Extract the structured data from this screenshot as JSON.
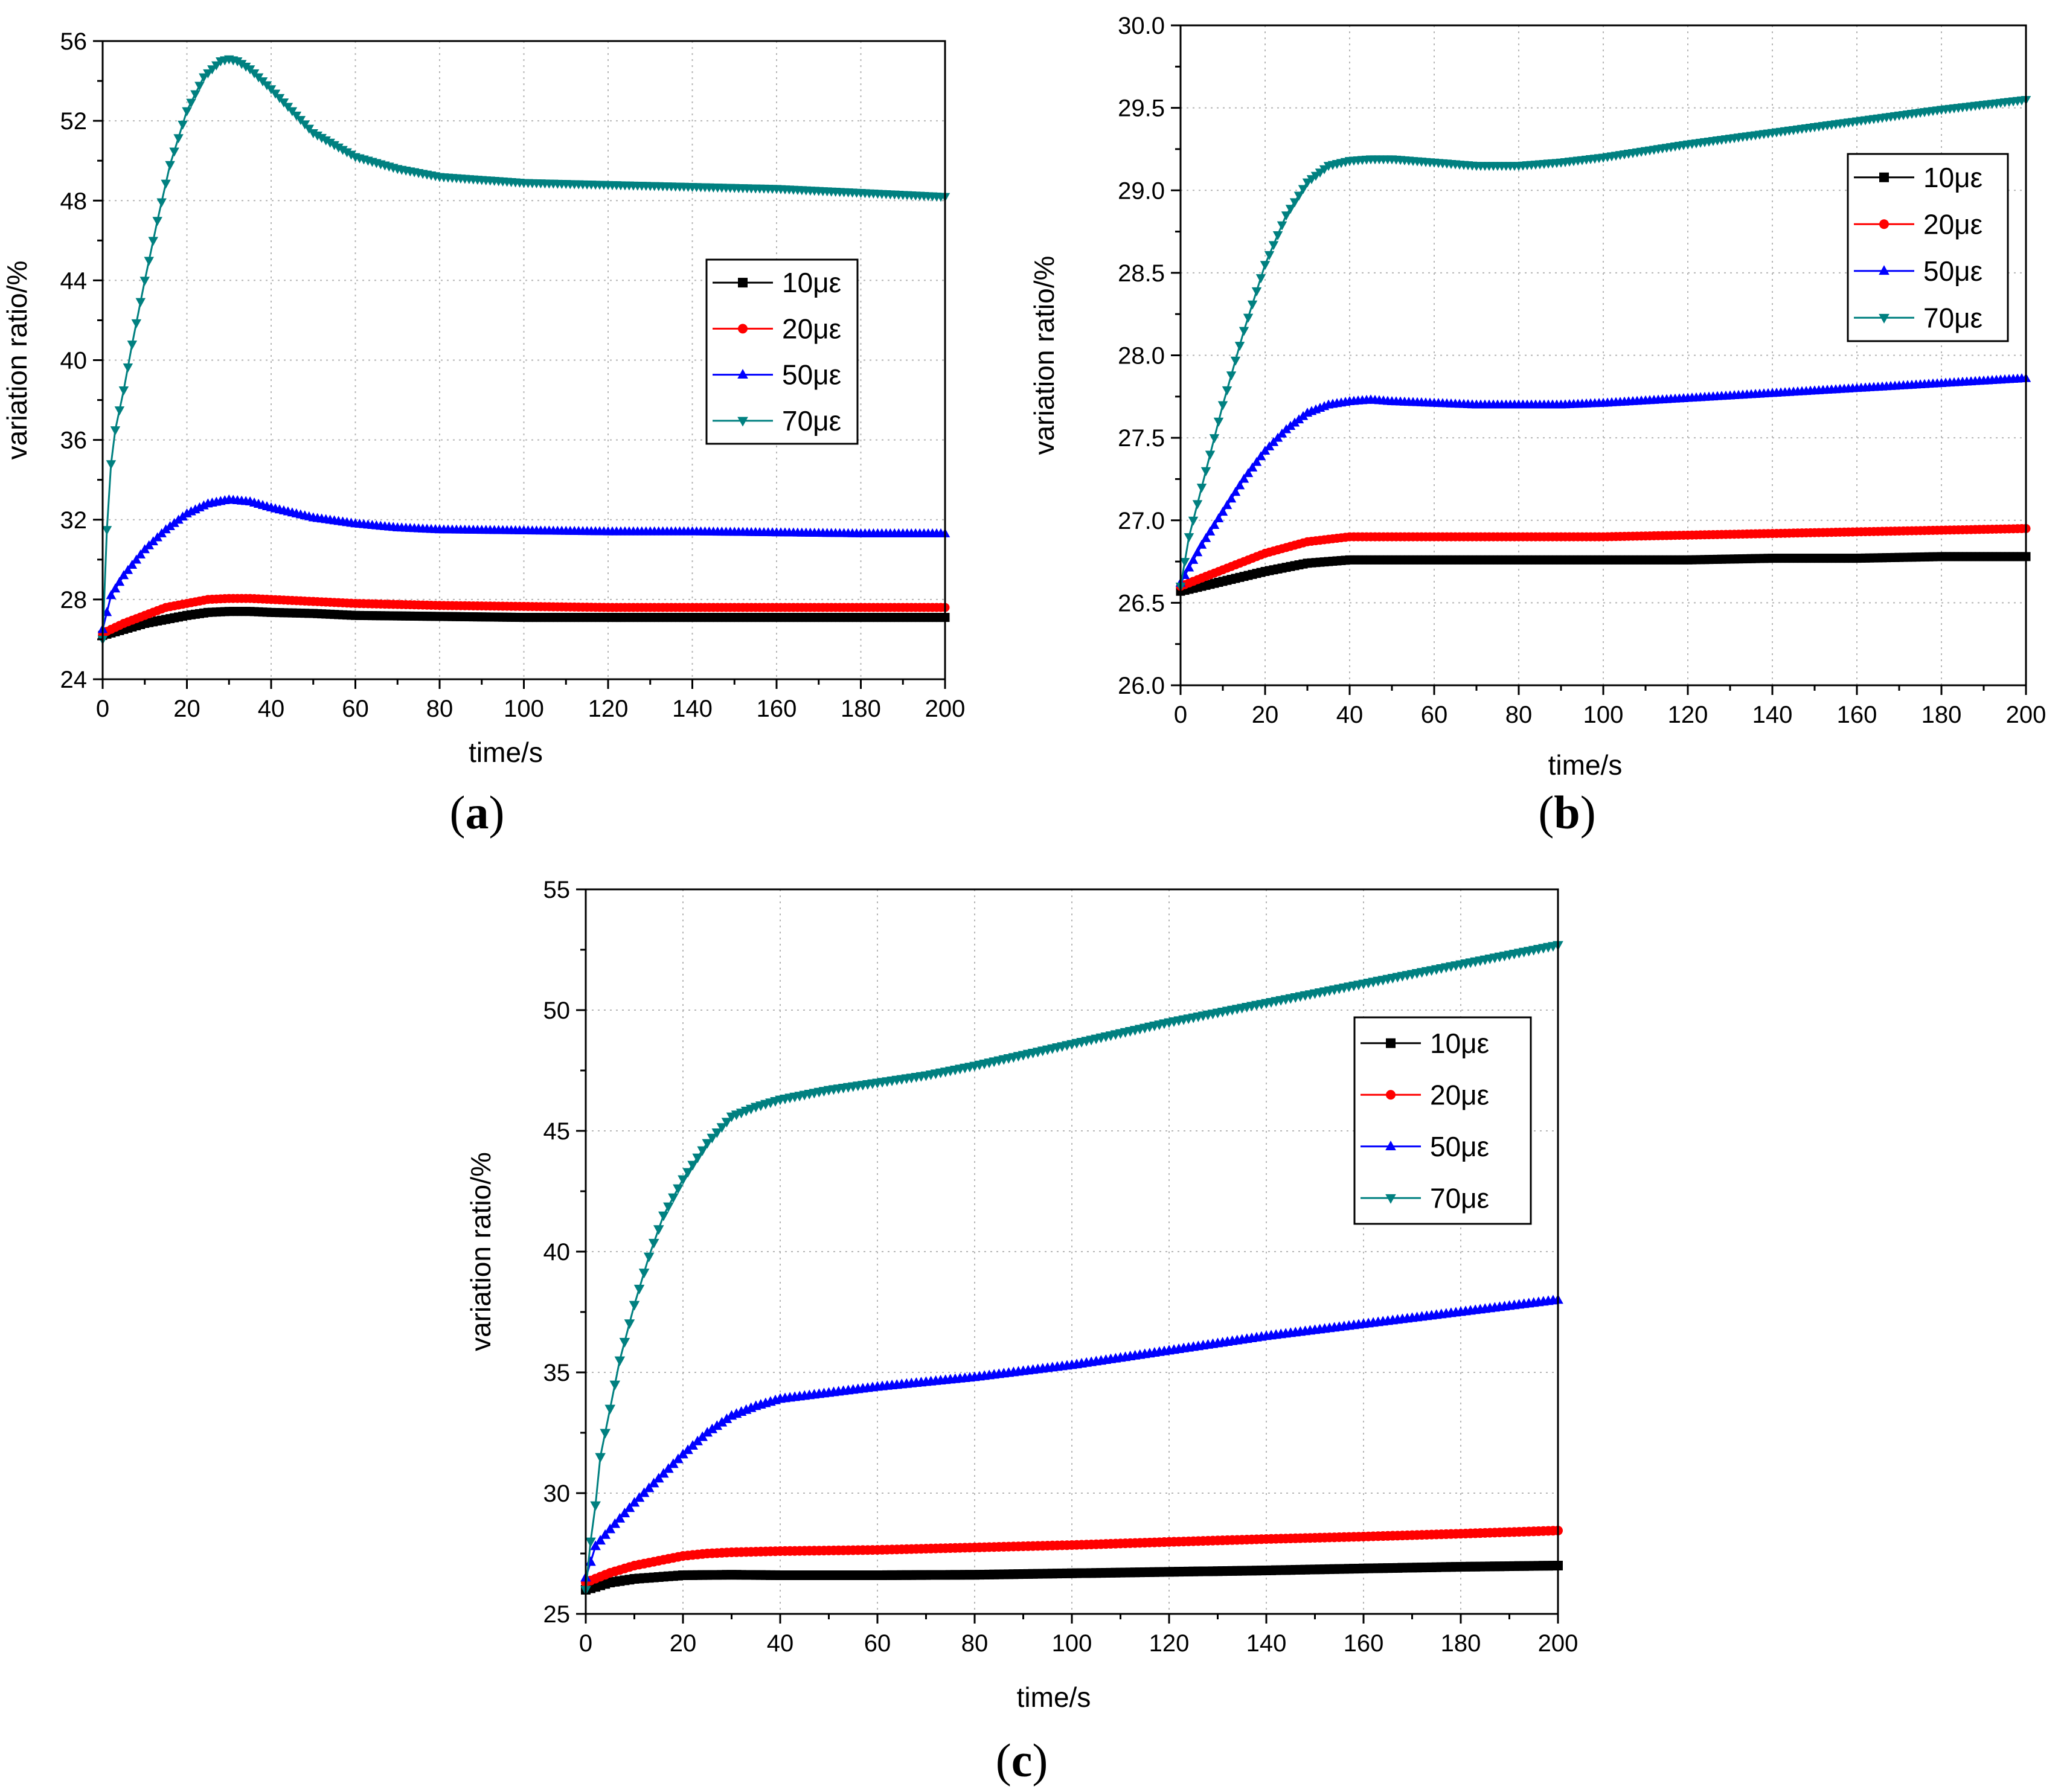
{
  "chart_data": [
    {
      "id": "a",
      "type": "line",
      "panel_label": "a",
      "xlabel": "time/s",
      "ylabel": "variation ratio/%",
      "xlim": [
        0,
        200
      ],
      "ylim": [
        24,
        56
      ],
      "xticks": [
        0,
        20,
        40,
        60,
        80,
        100,
        120,
        140,
        160,
        180,
        200
      ],
      "yticks": [
        24,
        28,
        32,
        36,
        40,
        44,
        48,
        52,
        56
      ],
      "grid": true,
      "legend_position": "right-middle",
      "series": [
        {
          "name": "10με",
          "color": "#000000",
          "marker": "square",
          "x": [
            0,
            5,
            10,
            15,
            20,
            25,
            30,
            35,
            40,
            50,
            60,
            80,
            100,
            120,
            140,
            160,
            180,
            200
          ],
          "y": [
            26.2,
            26.5,
            26.8,
            27.0,
            27.2,
            27.35,
            27.4,
            27.4,
            27.35,
            27.3,
            27.2,
            27.15,
            27.1,
            27.1,
            27.1,
            27.1,
            27.1,
            27.1
          ]
        },
        {
          "name": "20με",
          "color": "#ff0000",
          "marker": "circle",
          "x": [
            0,
            5,
            10,
            15,
            20,
            25,
            30,
            35,
            40,
            50,
            60,
            80,
            100,
            120,
            140,
            160,
            180,
            200
          ],
          "y": [
            26.3,
            26.8,
            27.2,
            27.6,
            27.8,
            28.0,
            28.05,
            28.05,
            28.0,
            27.9,
            27.8,
            27.7,
            27.65,
            27.6,
            27.6,
            27.6,
            27.6,
            27.6
          ]
        },
        {
          "name": "50με",
          "color": "#0000ff",
          "marker": "triangle-up",
          "x": [
            0,
            2,
            5,
            10,
            15,
            20,
            25,
            30,
            35,
            40,
            50,
            60,
            70,
            80,
            100,
            120,
            140,
            160,
            180,
            200
          ],
          "y": [
            26.5,
            28.2,
            29.2,
            30.5,
            31.5,
            32.3,
            32.8,
            33.0,
            32.9,
            32.6,
            32.1,
            31.8,
            31.6,
            31.5,
            31.45,
            31.4,
            31.4,
            31.35,
            31.3,
            31.3
          ]
        },
        {
          "name": "70με",
          "color": "#008080",
          "marker": "triangle-down",
          "x": [
            0,
            1,
            2,
            3,
            5,
            7,
            10,
            13,
            16,
            20,
            24,
            28,
            30,
            32,
            35,
            40,
            45,
            50,
            60,
            70,
            80,
            100,
            120,
            140,
            160,
            180,
            200
          ],
          "y": [
            26.0,
            31.5,
            34.8,
            36.5,
            38.5,
            40.8,
            44.0,
            47.0,
            49.8,
            52.5,
            54.2,
            55.0,
            55.1,
            55.0,
            54.6,
            53.6,
            52.5,
            51.4,
            50.2,
            49.6,
            49.2,
            48.9,
            48.8,
            48.7,
            48.6,
            48.4,
            48.2
          ]
        }
      ]
    },
    {
      "id": "b",
      "type": "line",
      "panel_label": "b",
      "xlabel": "time/s",
      "ylabel": "variation ratio/%",
      "xlim": [
        0,
        200
      ],
      "ylim": [
        26.0,
        30.0
      ],
      "xticks": [
        0,
        20,
        40,
        60,
        80,
        100,
        120,
        140,
        160,
        180,
        200
      ],
      "yticks": [
        26.0,
        26.5,
        27.0,
        27.5,
        28.0,
        28.5,
        29.0,
        29.5,
        30.0
      ],
      "ytick_labels": [
        "26.0",
        "26.5",
        "27.0",
        "27.5",
        "28.0",
        "28.5",
        "29.0",
        "29.5",
        "30.0"
      ],
      "grid": true,
      "legend_position": "top-right",
      "series": [
        {
          "name": "10με",
          "color": "#000000",
          "marker": "square",
          "x": [
            0,
            5,
            10,
            20,
            30,
            40,
            50,
            60,
            80,
            100,
            120,
            140,
            160,
            180,
            200
          ],
          "y": [
            26.57,
            26.6,
            26.63,
            26.69,
            26.74,
            26.76,
            26.76,
            26.76,
            26.76,
            26.76,
            26.76,
            26.77,
            26.77,
            26.78,
            26.78
          ]
        },
        {
          "name": "20με",
          "color": "#ff0000",
          "marker": "circle",
          "x": [
            0,
            5,
            10,
            20,
            30,
            40,
            50,
            60,
            80,
            100,
            120,
            140,
            160,
            180,
            200
          ],
          "y": [
            26.6,
            26.65,
            26.7,
            26.8,
            26.87,
            26.9,
            26.9,
            26.9,
            26.9,
            26.9,
            26.91,
            26.92,
            26.93,
            26.94,
            26.95
          ]
        },
        {
          "name": "50με",
          "color": "#0000ff",
          "marker": "triangle-up",
          "x": [
            0,
            5,
            10,
            15,
            20,
            25,
            30,
            35,
            40,
            45,
            50,
            60,
            70,
            80,
            90,
            100,
            120,
            140,
            160,
            180,
            200
          ],
          "y": [
            26.62,
            26.85,
            27.05,
            27.25,
            27.42,
            27.55,
            27.65,
            27.7,
            27.72,
            27.73,
            27.72,
            27.71,
            27.7,
            27.7,
            27.7,
            27.71,
            27.74,
            27.77,
            27.8,
            27.83,
            27.86
          ]
        },
        {
          "name": "70με",
          "color": "#008080",
          "marker": "triangle-down",
          "x": [
            0,
            2,
            5,
            10,
            15,
            20,
            25,
            30,
            35,
            40,
            45,
            50,
            60,
            70,
            80,
            90,
            100,
            120,
            140,
            160,
            180,
            200
          ],
          "y": [
            26.6,
            26.9,
            27.2,
            27.7,
            28.15,
            28.55,
            28.85,
            29.05,
            29.15,
            29.18,
            29.19,
            29.19,
            29.17,
            29.15,
            29.15,
            29.17,
            29.2,
            29.28,
            29.35,
            29.42,
            29.49,
            29.55
          ]
        }
      ]
    },
    {
      "id": "c",
      "type": "line",
      "panel_label": "c",
      "xlabel": "time/s",
      "ylabel": "variation ratio/%",
      "xlim": [
        0,
        200
      ],
      "ylim": [
        25,
        55
      ],
      "xticks": [
        0,
        20,
        40,
        60,
        80,
        100,
        120,
        140,
        160,
        180,
        200
      ],
      "yticks": [
        25,
        30,
        35,
        40,
        45,
        50,
        55
      ],
      "grid": true,
      "legend_position": "top-right",
      "series": [
        {
          "name": "10με",
          "color": "#000000",
          "marker": "square",
          "x": [
            0,
            5,
            10,
            20,
            30,
            40,
            60,
            80,
            100,
            120,
            140,
            160,
            180,
            200
          ],
          "y": [
            26.0,
            26.3,
            26.45,
            26.6,
            26.62,
            26.6,
            26.6,
            26.62,
            26.68,
            26.74,
            26.8,
            26.88,
            26.95,
            27.0
          ]
        },
        {
          "name": "20με",
          "color": "#ff0000",
          "marker": "circle",
          "x": [
            0,
            5,
            10,
            15,
            20,
            25,
            30,
            40,
            60,
            80,
            100,
            120,
            140,
            160,
            180,
            200
          ],
          "y": [
            26.3,
            26.7,
            27.0,
            27.2,
            27.4,
            27.5,
            27.55,
            27.6,
            27.65,
            27.75,
            27.85,
            27.98,
            28.1,
            28.2,
            28.32,
            28.45
          ]
        },
        {
          "name": "50με",
          "color": "#0000ff",
          "marker": "triangle-up",
          "x": [
            0,
            2,
            5,
            10,
            15,
            20,
            25,
            30,
            35,
            40,
            50,
            60,
            80,
            100,
            120,
            140,
            160,
            180,
            200
          ],
          "y": [
            26.5,
            27.8,
            28.5,
            29.6,
            30.6,
            31.6,
            32.5,
            33.2,
            33.6,
            33.9,
            34.15,
            34.4,
            34.8,
            35.3,
            35.9,
            36.5,
            37.0,
            37.5,
            38.0
          ]
        },
        {
          "name": "70με",
          "color": "#008080",
          "marker": "triangle-down",
          "x": [
            0,
            1,
            2,
            3,
            5,
            7,
            10,
            13,
            16,
            20,
            25,
            30,
            35,
            40,
            45,
            50,
            60,
            70,
            80,
            100,
            120,
            140,
            160,
            180,
            200
          ],
          "y": [
            26.0,
            28.0,
            29.5,
            31.5,
            33.5,
            35.5,
            37.8,
            39.8,
            41.5,
            43.0,
            44.5,
            45.6,
            46.0,
            46.3,
            46.5,
            46.7,
            47.0,
            47.3,
            47.7,
            48.6,
            49.5,
            50.3,
            51.1,
            51.9,
            52.7
          ]
        }
      ]
    }
  ]
}
